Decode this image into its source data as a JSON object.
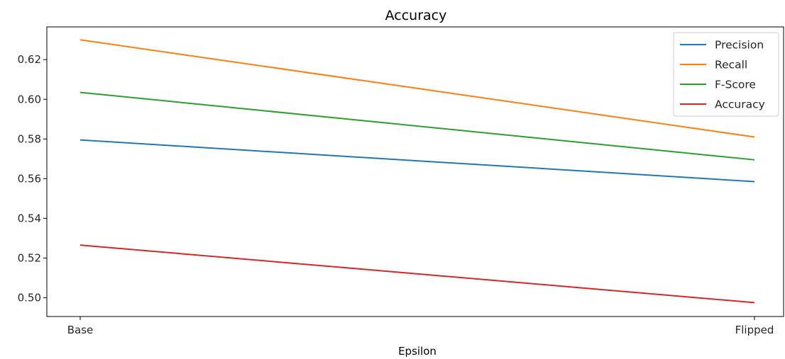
{
  "chart_data": {
    "type": "line",
    "title": "Accuracy",
    "xlabel": "Epsilon",
    "ylabel": "",
    "categories": [
      "Base",
      "Flipped"
    ],
    "ylim": [
      0.4905,
      0.6365
    ],
    "yticks": [
      0.5,
      0.52,
      0.54,
      0.56,
      0.58,
      0.6,
      0.62
    ],
    "ytick_labels": [
      "0.50",
      "0.52",
      "0.54",
      "0.56",
      "0.58",
      "0.60",
      "0.62"
    ],
    "grid": false,
    "legend_position": "top-right",
    "series": [
      {
        "name": "Precision",
        "values": [
          0.5795,
          0.5585
        ],
        "color": "#1f77b4"
      },
      {
        "name": "Recall",
        "values": [
          0.63,
          0.581
        ],
        "color": "#ff7f0e"
      },
      {
        "name": "F-Score",
        "values": [
          0.6035,
          0.5695
        ],
        "color": "#2ca02c"
      },
      {
        "name": "Accuracy",
        "values": [
          0.5265,
          0.4975
        ],
        "color": "#d62728"
      }
    ]
  }
}
